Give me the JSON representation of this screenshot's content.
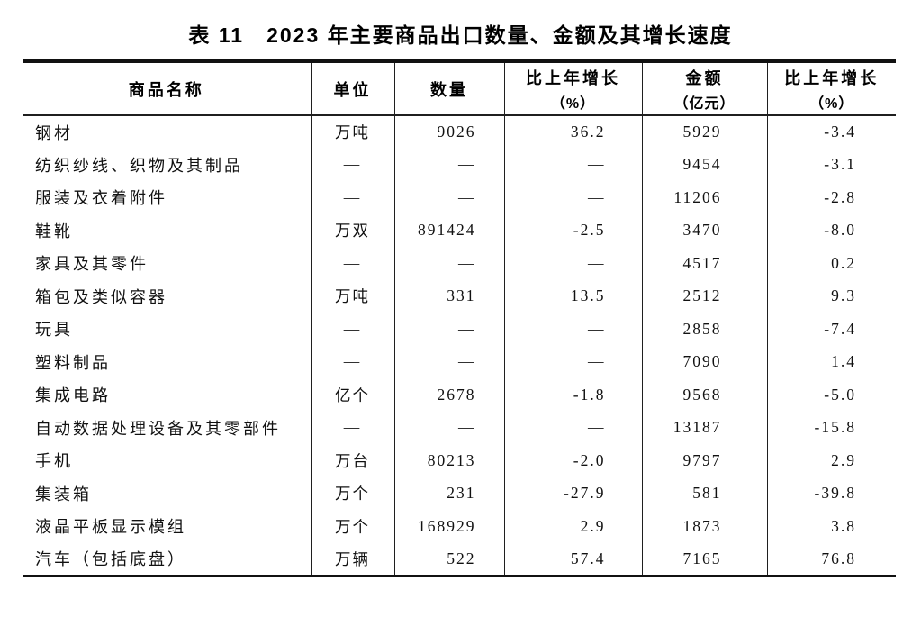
{
  "title": "表 11　2023 年主要商品出口数量、金额及其增长速度",
  "table": {
    "columns": [
      {
        "key": "name",
        "label": "商品名称"
      },
      {
        "key": "unit",
        "label": "单位"
      },
      {
        "key": "quantity",
        "label": "数量"
      },
      {
        "key": "quantity_growth",
        "label": "比上年增长",
        "sublabel": "（%）"
      },
      {
        "key": "value",
        "label": "金额",
        "sublabel": "（亿元）"
      },
      {
        "key": "value_growth",
        "label": "比上年增长",
        "sublabel": "（%）"
      }
    ],
    "missing_value_dash": "—",
    "rows": [
      {
        "name": "钢材",
        "unit": "万吨",
        "quantity": "9026",
        "quantity_growth": "36.2",
        "value": "5929",
        "value_growth": "-3.4"
      },
      {
        "name": "纺织纱线、织物及其制品",
        "unit": "—",
        "quantity": "—",
        "quantity_growth": "—",
        "value": "9454",
        "value_growth": "-3.1"
      },
      {
        "name": "服装及衣着附件",
        "unit": "—",
        "quantity": "—",
        "quantity_growth": "—",
        "value": "11206",
        "value_growth": "-2.8"
      },
      {
        "name": "鞋靴",
        "unit": "万双",
        "quantity": "891424",
        "quantity_growth": "-2.5",
        "value": "3470",
        "value_growth": "-8.0"
      },
      {
        "name": "家具及其零件",
        "unit": "—",
        "quantity": "—",
        "quantity_growth": "—",
        "value": "4517",
        "value_growth": "0.2"
      },
      {
        "name": "箱包及类似容器",
        "unit": "万吨",
        "quantity": "331",
        "quantity_growth": "13.5",
        "value": "2512",
        "value_growth": "9.3"
      },
      {
        "name": "玩具",
        "unit": "—",
        "quantity": "—",
        "quantity_growth": "—",
        "value": "2858",
        "value_growth": "-7.4"
      },
      {
        "name": "塑料制品",
        "unit": "—",
        "quantity": "—",
        "quantity_growth": "—",
        "value": "7090",
        "value_growth": "1.4"
      },
      {
        "name": "集成电路",
        "unit": "亿个",
        "quantity": "2678",
        "quantity_growth": "-1.8",
        "value": "9568",
        "value_growth": "-5.0"
      },
      {
        "name": "自动数据处理设备及其零部件",
        "unit": "—",
        "quantity": "—",
        "quantity_growth": "—",
        "value": "13187",
        "value_growth": "-15.8"
      },
      {
        "name": "手机",
        "unit": "万台",
        "quantity": "80213",
        "quantity_growth": "-2.0",
        "value": "9797",
        "value_growth": "2.9"
      },
      {
        "name": "集装箱",
        "unit": "万个",
        "quantity": "231",
        "quantity_growth": "-27.9",
        "value": "581",
        "value_growth": "-39.8"
      },
      {
        "name": "液晶平板显示模组",
        "unit": "万个",
        "quantity": "168929",
        "quantity_growth": "2.9",
        "value": "1873",
        "value_growth": "3.8"
      },
      {
        "name": "汽车（包括底盘）",
        "unit": "万辆",
        "quantity": "522",
        "quantity_growth": "57.4",
        "value": "7165",
        "value_growth": "76.8"
      }
    ]
  }
}
